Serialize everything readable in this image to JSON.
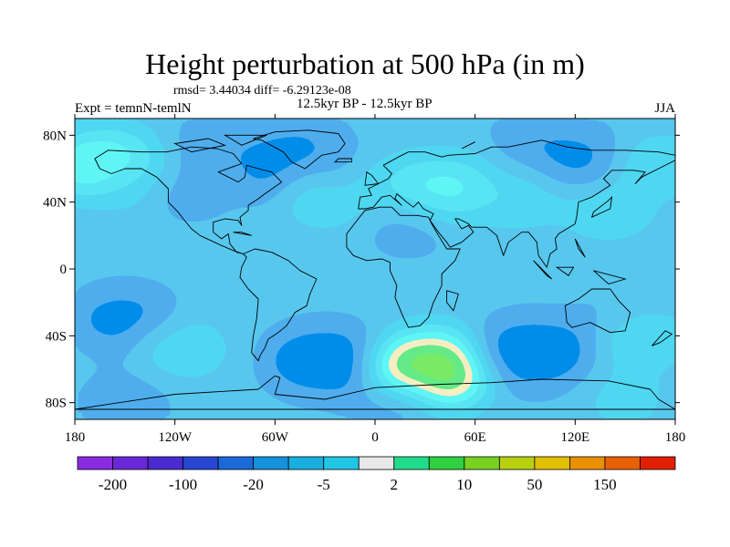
{
  "title": "Height perturbation at 500 hPa (in m)",
  "stats": "rmsd= 3.44034 diff= -6.29123e-08",
  "left_label": "Expt = temnN-temlN",
  "center_label": "12.5kyr BP - 12.5kyr BP",
  "right_label": "JJA",
  "chart_data": {
    "type": "heatmap",
    "projection": "cylindrical-equidistant",
    "xlim": [
      -180,
      180
    ],
    "ylim": [
      -90,
      90
    ],
    "x_ticks": [
      {
        "value": -180,
        "label": "180"
      },
      {
        "value": -120,
        "label": "120W"
      },
      {
        "value": -60,
        "label": "60W"
      },
      {
        "value": 0,
        "label": "0"
      },
      {
        "value": 60,
        "label": "60E"
      },
      {
        "value": 120,
        "label": "120E"
      },
      {
        "value": 180,
        "label": "180"
      }
    ],
    "y_ticks": [
      {
        "value": 80,
        "label": "80N"
      },
      {
        "value": 40,
        "label": "40N"
      },
      {
        "value": 0,
        "label": "0"
      },
      {
        "value": -40,
        "label": "40S"
      },
      {
        "value": -80,
        "label": "80S"
      }
    ],
    "colorbar": {
      "levels": [
        -200,
        -150,
        -100,
        -50,
        -20,
        -10,
        -5,
        -2,
        2,
        5,
        10,
        20,
        50,
        100,
        150,
        200
      ],
      "tick_labels": [
        "-200",
        "-100",
        "-20",
        "-5",
        "2",
        "10",
        "50",
        "150"
      ],
      "colors": [
        "#8a2be2",
        "#6a28d8",
        "#4b2bd0",
        "#2846d2",
        "#1a6ad8",
        "#1592dc",
        "#18aee0",
        "#20c6e4",
        "#e8e8e8",
        "#20dc8a",
        "#30d040",
        "#78d020",
        "#b8d010",
        "#e0c000",
        "#e89000",
        "#e86000",
        "#e02000"
      ]
    },
    "anomalies": [
      {
        "lon": -160,
        "lat": 62,
        "value": 9
      },
      {
        "lon": -140,
        "lat": 52,
        "value": 4
      },
      {
        "lon": -95,
        "lat": 74,
        "value": -4
      },
      {
        "lon": -45,
        "lat": 78,
        "value": -4
      },
      {
        "lon": -50,
        "lat": 58,
        "value": -8
      },
      {
        "lon": -110,
        "lat": 45,
        "value": -3
      },
      {
        "lon": -30,
        "lat": 42,
        "value": 4
      },
      {
        "lon": -5,
        "lat": 60,
        "value": -3
      },
      {
        "lon": 15,
        "lat": 53,
        "value": 4
      },
      {
        "lon": 45,
        "lat": 48,
        "value": 7
      },
      {
        "lon": 85,
        "lat": 42,
        "value": 4
      },
      {
        "lon": 95,
        "lat": 76,
        "value": -4
      },
      {
        "lon": 125,
        "lat": 65,
        "value": -7
      },
      {
        "lon": 170,
        "lat": 62,
        "value": 4
      },
      {
        "lon": 140,
        "lat": 35,
        "value": 4
      },
      {
        "lon": 20,
        "lat": 23,
        "value": -3
      },
      {
        "lon": -150,
        "lat": -30,
        "value": -8
      },
      {
        "lon": -115,
        "lat": -48,
        "value": 4
      },
      {
        "lon": -30,
        "lat": -55,
        "value": -12
      },
      {
        "lon": 35,
        "lat": -60,
        "value": 12
      },
      {
        "lon": 95,
        "lat": -50,
        "value": -12
      },
      {
        "lon": 145,
        "lat": -35,
        "value": -4
      },
      {
        "lon": 160,
        "lat": -42,
        "value": 4
      },
      {
        "lon": -150,
        "lat": -80,
        "value": -4
      },
      {
        "lon": 10,
        "lat": -83,
        "value": -3
      },
      {
        "lon": 150,
        "lat": -78,
        "value": 3
      }
    ]
  }
}
